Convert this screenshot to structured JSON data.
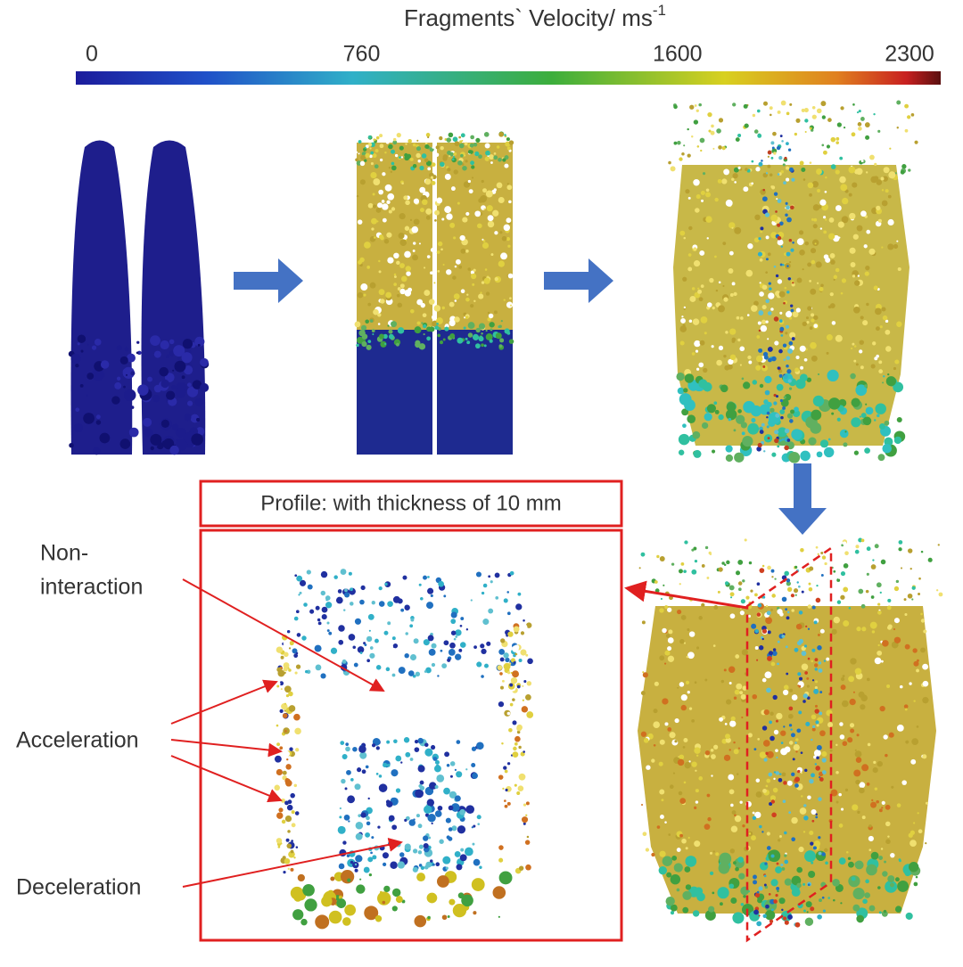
{
  "colorbar": {
    "title": {
      "text": "Fragments` Velocity/ ms",
      "superscript": "-1"
    },
    "range": [
      0,
      2300
    ],
    "ticks": [
      0,
      760,
      1600,
      2300
    ]
  },
  "profile_label": "Profile: with thickness of 10 mm",
  "annotations": {
    "non_interaction": [
      "Non-",
      "interaction"
    ],
    "acceleration": "Acceleration",
    "deceleration": "Deceleration"
  }
}
